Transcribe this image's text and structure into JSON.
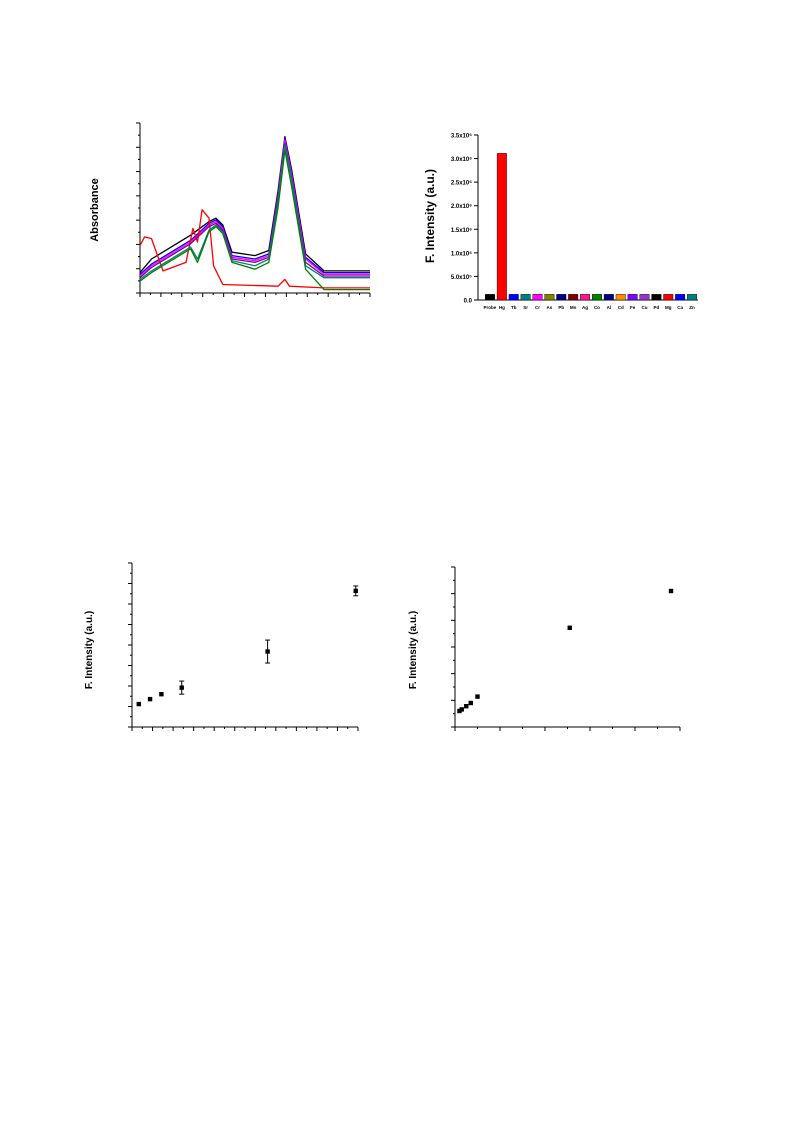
{
  "chart_data": [
    {
      "type": "line",
      "ylabel": "Absorbance",
      "note": "overlaid absorbance spectra; axis tick labels not printed",
      "series": [
        {
          "color": "#000000",
          "points": [
            [
              0,
              0.12
            ],
            [
              0.05,
              0.2
            ],
            [
              0.22,
              0.34
            ],
            [
              0.3,
              0.42
            ],
            [
              0.33,
              0.44
            ],
            [
              0.36,
              0.4
            ],
            [
              0.4,
              0.24
            ],
            [
              0.5,
              0.22
            ],
            [
              0.56,
              0.25
            ],
            [
              0.6,
              0.6
            ],
            [
              0.63,
              0.92
            ],
            [
              0.66,
              0.72
            ],
            [
              0.72,
              0.23
            ],
            [
              0.8,
              0.13
            ],
            [
              1,
              0.13
            ]
          ]
        },
        {
          "color": "#0000ff",
          "points": [
            [
              0,
              0.11
            ],
            [
              0.05,
              0.17
            ],
            [
              0.22,
              0.31
            ],
            [
              0.3,
              0.41
            ],
            [
              0.33,
              0.43
            ],
            [
              0.36,
              0.39
            ],
            [
              0.4,
              0.22
            ],
            [
              0.5,
              0.2
            ],
            [
              0.56,
              0.23
            ],
            [
              0.6,
              0.58
            ],
            [
              0.63,
              0.91
            ],
            [
              0.66,
              0.7
            ],
            [
              0.72,
              0.21
            ],
            [
              0.8,
              0.12
            ],
            [
              1,
              0.12
            ]
          ]
        },
        {
          "color": "#ff00ff",
          "points": [
            [
              0,
              0.1
            ],
            [
              0.05,
              0.16
            ],
            [
              0.22,
              0.3
            ],
            [
              0.3,
              0.4
            ],
            [
              0.33,
              0.42
            ],
            [
              0.36,
              0.38
            ],
            [
              0.4,
              0.21
            ],
            [
              0.5,
              0.19
            ],
            [
              0.56,
              0.22
            ],
            [
              0.6,
              0.57
            ],
            [
              0.63,
              0.9
            ],
            [
              0.66,
              0.69
            ],
            [
              0.72,
              0.2
            ],
            [
              0.8,
              0.11
            ],
            [
              1,
              0.11
            ]
          ]
        },
        {
          "color": "#ff0000",
          "points": [
            [
              0,
              0.28
            ],
            [
              0.02,
              0.33
            ],
            [
              0.05,
              0.32
            ],
            [
              0.1,
              0.13
            ],
            [
              0.2,
              0.18
            ],
            [
              0.23,
              0.38
            ],
            [
              0.25,
              0.3
            ],
            [
              0.27,
              0.49
            ],
            [
              0.3,
              0.44
            ],
            [
              0.32,
              0.16
            ],
            [
              0.36,
              0.05
            ],
            [
              0.6,
              0.04
            ],
            [
              0.63,
              0.08
            ],
            [
              0.65,
              0.04
            ],
            [
              0.8,
              0.03
            ],
            [
              1,
              0.03
            ]
          ]
        },
        {
          "color": "#800080",
          "points": [
            [
              0,
              0.09
            ],
            [
              0.05,
              0.15
            ],
            [
              0.22,
              0.29
            ],
            [
              0.3,
              0.39
            ],
            [
              0.33,
              0.41
            ],
            [
              0.36,
              0.37
            ],
            [
              0.4,
              0.2
            ],
            [
              0.5,
              0.18
            ],
            [
              0.56,
              0.21
            ],
            [
              0.6,
              0.56
            ],
            [
              0.63,
              0.88
            ],
            [
              0.66,
              0.67
            ],
            [
              0.72,
              0.18
            ],
            [
              0.8,
              0.1
            ],
            [
              1,
              0.1
            ]
          ]
        },
        {
          "color": "#008080",
          "points": [
            [
              0,
              0.08
            ],
            [
              0.05,
              0.13
            ],
            [
              0.22,
              0.27
            ],
            [
              0.25,
              0.2
            ],
            [
              0.3,
              0.37
            ],
            [
              0.33,
              0.4
            ],
            [
              0.36,
              0.36
            ],
            [
              0.4,
              0.19
            ],
            [
              0.5,
              0.16
            ],
            [
              0.56,
              0.2
            ],
            [
              0.6,
              0.54
            ],
            [
              0.63,
              0.87
            ],
            [
              0.66,
              0.66
            ],
            [
              0.72,
              0.16
            ],
            [
              0.8,
              0.09
            ],
            [
              1,
              0.09
            ]
          ]
        },
        {
          "color": "#008000",
          "points": [
            [
              0,
              0.07
            ],
            [
              0.05,
              0.12
            ],
            [
              0.22,
              0.26
            ],
            [
              0.25,
              0.18
            ],
            [
              0.3,
              0.36
            ],
            [
              0.33,
              0.39
            ],
            [
              0.36,
              0.35
            ],
            [
              0.4,
              0.18
            ],
            [
              0.5,
              0.14
            ],
            [
              0.56,
              0.18
            ],
            [
              0.6,
              0.5
            ],
            [
              0.63,
              0.84
            ],
            [
              0.66,
              0.62
            ],
            [
              0.72,
              0.14
            ],
            [
              0.8,
              0.02
            ],
            [
              1,
              0.02
            ]
          ]
        }
      ]
    },
    {
      "type": "bar",
      "ylabel": "F. Intensity (a.u.)",
      "ylim": [
        0,
        3500000
      ],
      "yticks": [
        {
          "value": 0,
          "label": "0.0"
        },
        {
          "value": 500000,
          "label": "5.0x10⁵"
        },
        {
          "value": 1000000,
          "label": "1.0x10⁶"
        },
        {
          "value": 1500000,
          "label": "1.5x10⁶"
        },
        {
          "value": 2000000,
          "label": "2.0x10⁶"
        },
        {
          "value": 2500000,
          "label": "2.5x10⁶"
        },
        {
          "value": 3000000,
          "label": "3.0x10⁶"
        },
        {
          "value": 3500000,
          "label": "3.5x10⁶"
        }
      ],
      "categories": [
        "Probe",
        "Hg",
        "Tb",
        "Sr",
        "Cr",
        "As",
        "Pb",
        "Mn",
        "Ag",
        "Co",
        "Al",
        "Cd",
        "Fe",
        "Cu",
        "Pd",
        "Mg",
        "Ca",
        "Zn"
      ],
      "values": [
        120000,
        3110000,
        120000,
        120000,
        120000,
        120000,
        120000,
        120000,
        120000,
        120000,
        120000,
        120000,
        120000,
        120000,
        120000,
        120000,
        120000,
        120000
      ],
      "colors": [
        "#000000",
        "#ff0000",
        "#0000ff",
        "#008080",
        "#ff00ff",
        "#808000",
        "#000080",
        "#800000",
        "#ff1493",
        "#008000",
        "#000080",
        "#ff8c00",
        "#8000ff",
        "#9932cc",
        "#000000",
        "#ff0000",
        "#0000ff",
        "#008080"
      ]
    },
    {
      "type": "scatter",
      "ylabel": "F. Intensity (a.u.)",
      "note": "no tick labels printed",
      "xlim": [
        0,
        1
      ],
      "ylim": [
        0,
        1
      ],
      "points": [
        {
          "x": 0.03,
          "y": 0.14,
          "err": 0
        },
        {
          "x": 0.08,
          "y": 0.17,
          "err": 0
        },
        {
          "x": 0.13,
          "y": 0.2,
          "err": 0
        },
        {
          "x": 0.22,
          "y": 0.24,
          "err": 0.04
        },
        {
          "x": 0.6,
          "y": 0.46,
          "err": 0.07
        },
        {
          "x": 0.99,
          "y": 0.83,
          "err": 0.03
        }
      ]
    },
    {
      "type": "scatter",
      "ylabel": "F. Intensity (a.u.)",
      "note": "no tick labels printed",
      "xlim": [
        0,
        1
      ],
      "ylim": [
        0,
        1
      ],
      "points": [
        {
          "x": 0.02,
          "y": 0.1
        },
        {
          "x": 0.03,
          "y": 0.11
        },
        {
          "x": 0.05,
          "y": 0.13
        },
        {
          "x": 0.07,
          "y": 0.15
        },
        {
          "x": 0.1,
          "y": 0.19
        },
        {
          "x": 0.51,
          "y": 0.62
        },
        {
          "x": 0.96,
          "y": 0.85
        }
      ]
    }
  ]
}
